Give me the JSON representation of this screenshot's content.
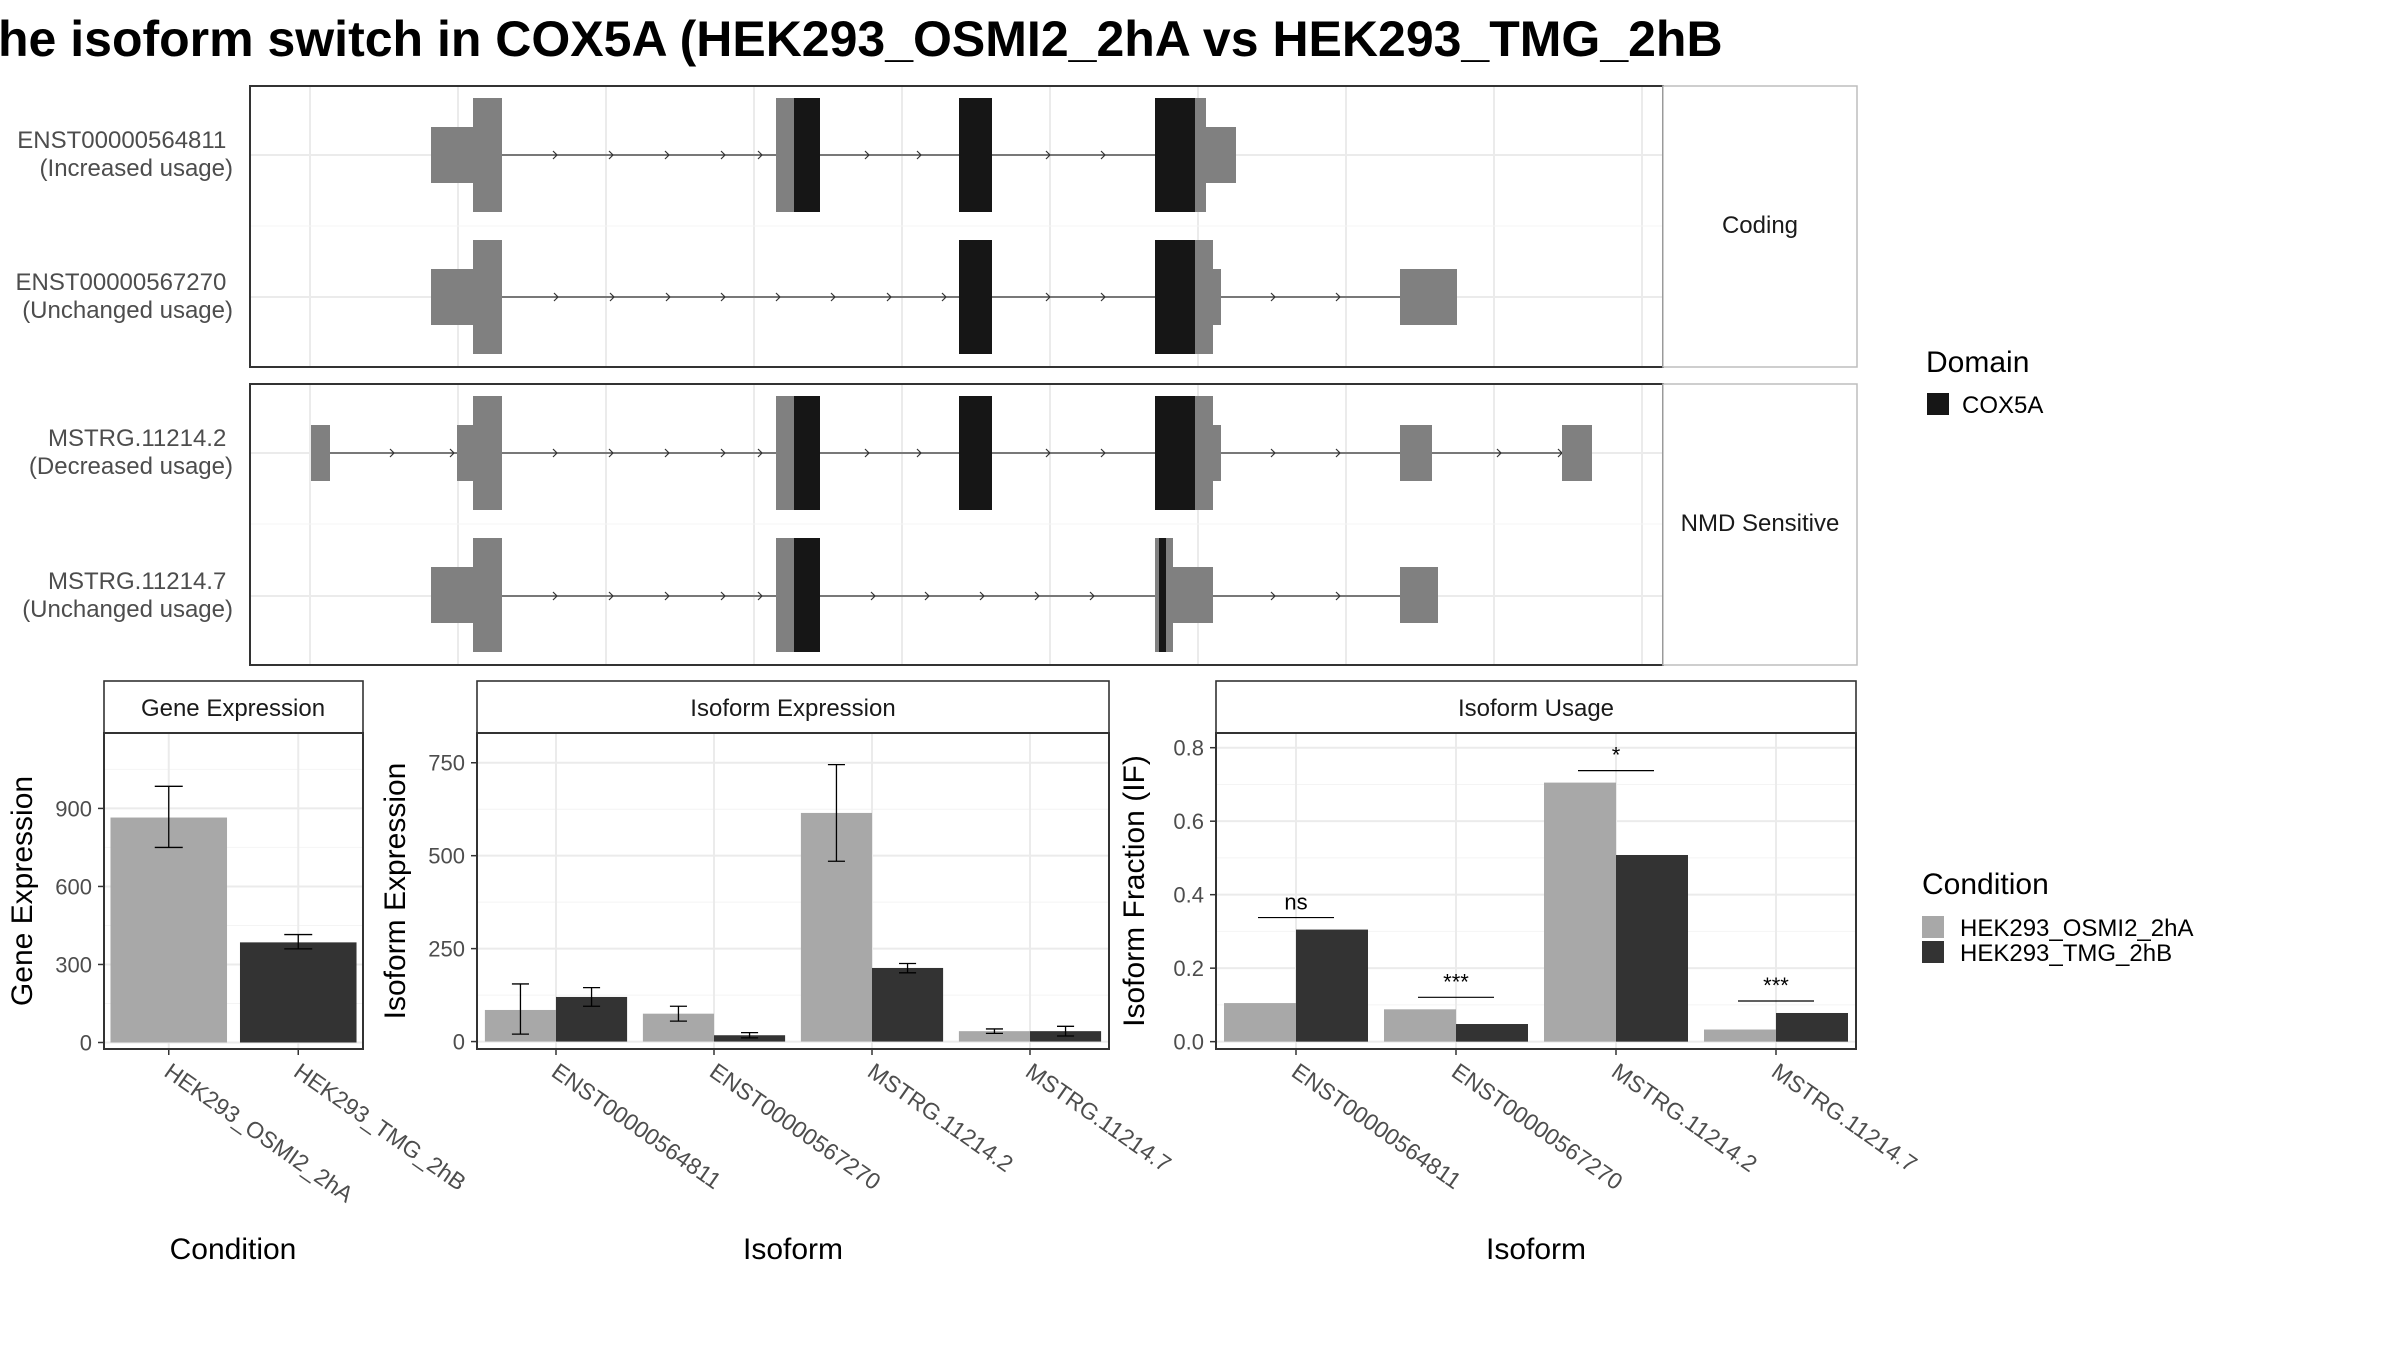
{
  "title": "he isoform switch in COX5A (HEK293_OSMI2_2hA vs HEK293_TMG_2hB",
  "colors": {
    "exon": "#808080",
    "domain": "#161616",
    "cond_a": "#a8a8a8",
    "cond_b": "#333333",
    "grid": "#ebebeb",
    "panel_border": "#333333",
    "strip_border": "#bdbdbd"
  },
  "structure": {
    "facets": [
      "Coding",
      "NMD Sensitive"
    ],
    "transcripts": [
      {
        "id": "ENST00000564811",
        "usage": "(Increased usage)",
        "facet": "Coding"
      },
      {
        "id": "ENST00000567270",
        "usage": "(Unchanged usage)",
        "facet": "Coding"
      },
      {
        "id": "MSTRG.11214.2",
        "usage": "(Decreased usage)",
        "facet": "NMD Sensitive"
      },
      {
        "id": "MSTRG.11214.7",
        "usage": "(Unchanged usage)",
        "facet": "NMD Sensitive"
      }
    ],
    "legend_domain": {
      "title": "Domain",
      "items": [
        "COX5A"
      ]
    }
  },
  "legend_condition": {
    "title": "Condition",
    "items": [
      "HEK293_OSMI2_2hA",
      "HEK293_TMG_2hB"
    ]
  },
  "chart_data": [
    {
      "type": "bar",
      "title": "Gene Expression",
      "xlabel": "Condition",
      "ylabel": "Gene Expression",
      "categories": [
        "HEK293_OSMI2_2hA",
        "HEK293_TMG_2hB"
      ],
      "values": [
        865,
        385
      ],
      "error_low": [
        750,
        360
      ],
      "error_high": [
        985,
        415
      ],
      "ylim": [
        -25,
        1190
      ],
      "yticks": [
        0,
        300,
        600,
        900
      ]
    },
    {
      "type": "bar",
      "title": "Isoform Expression",
      "xlabel": "Isoform",
      "ylabel": "Isoform Expression",
      "categories": [
        "ENST00000564811",
        "ENST00000567270",
        "MSTRG.11214.2",
        "MSTRG.11214.7"
      ],
      "series": [
        {
          "name": "HEK293_OSMI2_2hA",
          "values": [
            85,
            75,
            615,
            28
          ],
          "error_low": [
            20,
            55,
            485,
            22
          ],
          "error_high": [
            155,
            95,
            745,
            34
          ]
        },
        {
          "name": "HEK293_TMG_2hB",
          "values": [
            120,
            17,
            198,
            28
          ],
          "error_low": [
            95,
            10,
            185,
            15
          ],
          "error_high": [
            145,
            24,
            210,
            41
          ]
        }
      ],
      "ylim": [
        -20,
        830
      ],
      "yticks": [
        0,
        250,
        500,
        750
      ]
    },
    {
      "type": "bar",
      "title": "Isoform Usage",
      "xlabel": "Isoform",
      "ylabel": "Isoform Fraction (IF)",
      "categories": [
        "ENST00000564811",
        "ENST00000567270",
        "MSTRG.11214.2",
        "MSTRG.11214.7"
      ],
      "series": [
        {
          "name": "HEK293_OSMI2_2hA",
          "values": [
            0.105,
            0.088,
            0.705,
            0.033
          ]
        },
        {
          "name": "HEK293_TMG_2hB",
          "values": [
            0.305,
            0.048,
            0.508,
            0.078
          ]
        }
      ],
      "significance": [
        "ns",
        "***",
        "*",
        "***"
      ],
      "ylim": [
        -0.02,
        0.84
      ],
      "yticks": [
        "0.0",
        "0.2",
        "0.4",
        "0.6",
        "0.8"
      ]
    }
  ]
}
